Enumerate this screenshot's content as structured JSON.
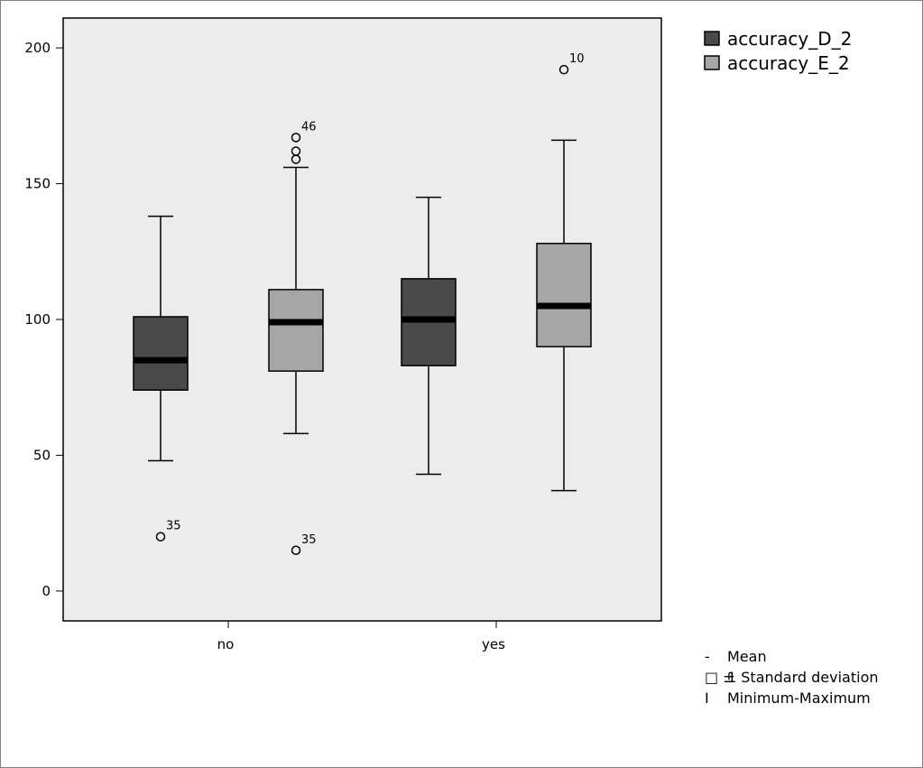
{
  "chart_data": {
    "type": "box",
    "title": "",
    "xlabel": "",
    "ylabel": "",
    "ylim": [
      -11,
      211
    ],
    "yticks": [
      0,
      50,
      100,
      150,
      200
    ],
    "categories": [
      "no",
      "yes"
    ],
    "series": [
      {
        "name": "accuracy_D_2",
        "color": "#4a4a4a",
        "boxes": [
          {
            "category": "no",
            "min": 48,
            "q1": 74,
            "mean": 85,
            "q3": 101,
            "max": 138,
            "outliers": [
              {
                "value": 20,
                "label": "35"
              }
            ]
          },
          {
            "category": "yes",
            "min": 43,
            "q1": 83,
            "mean": 100,
            "q3": 115,
            "max": 145,
            "outliers": []
          }
        ]
      },
      {
        "name": "accuracy_E_2",
        "color": "#a6a6a6",
        "boxes": [
          {
            "category": "no",
            "min": 58,
            "q1": 81,
            "mean": 99,
            "q3": 111,
            "max": 156,
            "outliers": [
              {
                "value": 15,
                "label": "35"
              },
              {
                "value": 159,
                "label": ""
              },
              {
                "value": 162,
                "label": ""
              },
              {
                "value": 167,
                "label": "46"
              }
            ]
          },
          {
            "category": "yes",
            "min": 37,
            "q1": 90,
            "mean": 105,
            "q3": 128,
            "max": 166,
            "outliers": [
              {
                "value": 192,
                "label": "10"
              }
            ]
          }
        ]
      }
    ],
    "legend": {
      "placement": "top-right",
      "notes": [
        {
          "symbol": "-",
          "label": "Mean"
        },
        {
          "symbol": "□ ±",
          "label": "1 Standard deviation"
        },
        {
          "symbol": "I",
          "label": "Minimum-Maximum"
        }
      ]
    },
    "plot_background": "#ececec"
  }
}
